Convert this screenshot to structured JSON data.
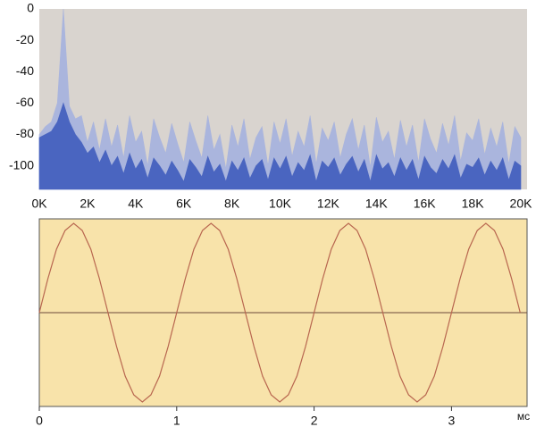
{
  "chart_data": [
    {
      "type": "area",
      "x": [
        0,
        250,
        500,
        750,
        1000,
        1250,
        1500,
        1750,
        2000,
        2250,
        2500,
        2750,
        3000,
        3250,
        3500,
        3750,
        4000,
        4250,
        4500,
        4750,
        5000,
        5250,
        5500,
        5750,
        6000,
        6250,
        6500,
        6750,
        7000,
        7250,
        7500,
        7750,
        8000,
        8250,
        8500,
        8750,
        9000,
        9250,
        9500,
        9750,
        10000,
        10250,
        10500,
        10750,
        11000,
        11250,
        11500,
        11750,
        12000,
        12250,
        12500,
        12750,
        13000,
        13250,
        13500,
        13750,
        14000,
        14250,
        14500,
        14750,
        15000,
        15250,
        15500,
        15750,
        16000,
        16250,
        16500,
        16750,
        17000,
        17250,
        17500,
        17750,
        18000,
        18250,
        18500,
        18750,
        19000,
        19250,
        19500,
        19750,
        20000
      ],
      "series": [
        {
          "color": "#aab5dd",
          "values": [
            -80,
            -75,
            -72,
            -60,
            0,
            -62,
            -70,
            -68,
            -85,
            -72,
            -90,
            -70,
            -88,
            -74,
            -95,
            -68,
            -85,
            -78,
            -100,
            -70,
            -82,
            -92,
            -73,
            -86,
            -98,
            -72,
            -84,
            -95,
            -68,
            -90,
            -80,
            -102,
            -74,
            -88,
            -70,
            -96,
            -82,
            -75,
            -100,
            -72,
            -86,
            -70,
            -94,
            -78,
            -88,
            -68,
            -99,
            -76,
            -84,
            -72,
            -95,
            -80,
            -70,
            -90,
            -74,
            -101,
            -69,
            -85,
            -78,
            -96,
            -71,
            -88,
            -74,
            -98,
            -70,
            -83,
            -92,
            -73,
            -87,
            -68,
            -97,
            -79,
            -84,
            -70,
            -93,
            -76,
            -88,
            -72,
            -99,
            -75,
            -82
          ]
        },
        {
          "color": "#4a65c0",
          "values": [
            -82,
            -80,
            -78,
            -72,
            -60,
            -72,
            -80,
            -85,
            -92,
            -88,
            -98,
            -90,
            -100,
            -94,
            -105,
            -92,
            -102,
            -96,
            -108,
            -95,
            -100,
            -106,
            -97,
            -103,
            -110,
            -96,
            -101,
            -107,
            -94,
            -104,
            -99,
            -110,
            -97,
            -103,
            -95,
            -108,
            -100,
            -96,
            -109,
            -95,
            -102,
            -94,
            -107,
            -98,
            -103,
            -93,
            -110,
            -97,
            -101,
            -95,
            -106,
            -99,
            -94,
            -104,
            -96,
            -110,
            -93,
            -102,
            -98,
            -107,
            -95,
            -103,
            -96,
            -109,
            -94,
            -101,
            -105,
            -96,
            -102,
            -93,
            -108,
            -99,
            -101,
            -95,
            -106,
            -97,
            -103,
            -95,
            -109,
            -97,
            -100
          ]
        }
      ],
      "xlim": [
        0,
        20260
      ],
      "ylim": [
        -115,
        0
      ],
      "xticks": [
        {
          "value": 0,
          "label": "0K"
        },
        {
          "value": 2000,
          "label": "2K"
        },
        {
          "value": 4000,
          "label": "4K"
        },
        {
          "value": 6000,
          "label": "6K"
        },
        {
          "value": 8000,
          "label": "8K"
        },
        {
          "value": 10000,
          "label": "10K"
        },
        {
          "value": 12000,
          "label": "12K"
        },
        {
          "value": 14000,
          "label": "14K"
        },
        {
          "value": 16000,
          "label": "16K"
        },
        {
          "value": 18000,
          "label": "18K"
        },
        {
          "value": 20000,
          "label": "20K"
        }
      ],
      "yticks": [
        0,
        -20,
        -40,
        -60,
        -80,
        -100
      ],
      "background": "#d9d4cf"
    },
    {
      "type": "line",
      "x_label": "мс",
      "x": [
        0,
        0.0625,
        0.125,
        0.1875,
        0.25,
        0.3125,
        0.375,
        0.4375,
        0.5,
        0.5625,
        0.625,
        0.6875,
        0.75,
        0.8125,
        0.875,
        0.9375,
        1,
        1.0625,
        1.125,
        1.1875,
        1.25,
        1.3125,
        1.375,
        1.4375,
        1.5,
        1.5625,
        1.625,
        1.6875,
        1.75,
        1.8125,
        1.875,
        1.9375,
        2,
        2.0625,
        2.125,
        2.1875,
        2.25,
        2.3125,
        2.375,
        2.4375,
        2.5,
        2.5625,
        2.625,
        2.6875,
        2.75,
        2.8125,
        2.875,
        2.9375,
        3,
        3.0625,
        3.125,
        3.1875,
        3.25,
        3.3125,
        3.375,
        3.4375,
        3.5
      ],
      "series": [
        {
          "color": "#b8664f",
          "values": [
            0,
            0.38,
            0.71,
            0.92,
            1,
            0.92,
            0.71,
            0.38,
            0,
            -0.38,
            -0.71,
            -0.92,
            -1,
            -0.92,
            -0.71,
            -0.38,
            0,
            0.38,
            0.71,
            0.92,
            1,
            0.92,
            0.71,
            0.38,
            0,
            -0.38,
            -0.71,
            -0.92,
            -1,
            -0.92,
            -0.71,
            -0.38,
            0,
            0.38,
            0.71,
            0.92,
            1,
            0.92,
            0.71,
            0.38,
            0,
            -0.38,
            -0.71,
            -0.92,
            -1,
            -0.92,
            -0.71,
            -0.38,
            0,
            0.38,
            0.71,
            0.92,
            1,
            0.92,
            0.71,
            0.38,
            0
          ]
        }
      ],
      "xlim": [
        0,
        3.55
      ],
      "ylim": [
        -1.05,
        1.05
      ],
      "xticks": [
        0,
        1,
        2,
        3
      ],
      "background": "#f8e3aa"
    }
  ]
}
